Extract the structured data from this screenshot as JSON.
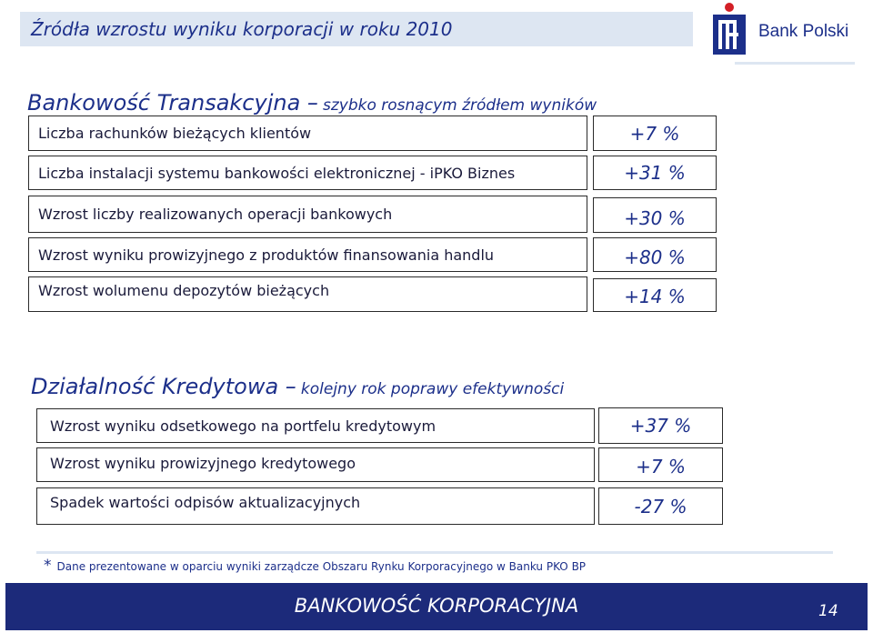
{
  "header": {
    "title": "Źródła wzrostu wyniku korporacji w roku 2010",
    "bank_name": "Bank Polski"
  },
  "section1": {
    "title_main": "Bankowość Transakcyjna –",
    "title_sub": "szybko rosnącym źródłem wyników",
    "rows": [
      {
        "label": "Liczba rachunków bieżących klientów",
        "value": "+7 %"
      },
      {
        "label": "Liczba instalacji systemu bankowości elektronicznej - iPKO Biznes",
        "value": "+31 %"
      },
      {
        "label": "Wzrost liczby realizowanych operacji bankowych",
        "value": "+30 %"
      },
      {
        "label": "Wzrost wyniku prowizyjnego z produktów finansowania handlu",
        "value": "+80 %"
      },
      {
        "label": "Wzrost wolumenu depozytów bieżących",
        "value": "+14 %"
      }
    ]
  },
  "section2": {
    "title_main": "Działalność Kredytowa –",
    "title_sub": "kolejny rok poprawy efektywności",
    "rows": [
      {
        "label": "Wzrost wyniku odsetkowego na portfelu kredytowym",
        "value": "+37 %"
      },
      {
        "label": "Wzrost wyniku prowizyjnego kredytowego",
        "value": "+7 %"
      },
      {
        "label": "Spadek wartości odpisów aktualizacyjnych",
        "value": "-27 %"
      }
    ]
  },
  "footnote": {
    "star": "*",
    "text": "Dane prezentowane w oparciu wyniki zarządcze Obszaru Rynku Korporacyjnego w Banku PKO BP"
  },
  "footer": {
    "title": "BANKOWOŚĆ KORPORACYJNA",
    "page_number": "14"
  },
  "colors": {
    "brand_blue": "#1c2f8a",
    "footer_bg": "#1c2a7a",
    "light_band": "#dde6f2",
    "logo_red": "#d31f26"
  }
}
